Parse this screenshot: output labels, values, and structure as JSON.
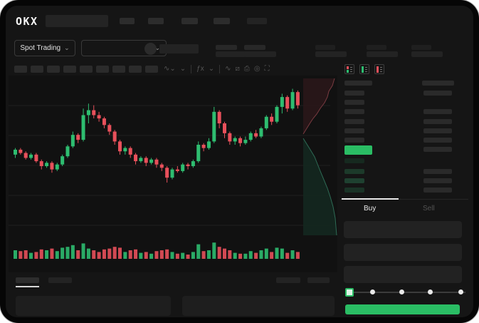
{
  "window": {
    "brand": "OKX"
  },
  "theme": {
    "green": "#2ebd70",
    "red": "#e8505b",
    "bg": "#151515",
    "skeleton": "#2c2c2c",
    "highlight_green": "#2abd64"
  },
  "subheader": {
    "market_selector_label": "Spot Trading",
    "chevron": "⌄"
  },
  "toolbar": {
    "icons": [
      {
        "name": "chart-style-icon",
        "glyph": "∿⌄"
      },
      {
        "name": "interval-dropdown-icon",
        "glyph": "⌄"
      },
      {
        "name": "divider"
      },
      {
        "name": "indicators-icon",
        "glyph": "ƒx"
      },
      {
        "name": "indicators-dropdown-icon",
        "glyph": "⌄"
      },
      {
        "name": "divider"
      },
      {
        "name": "line-tool-icon",
        "glyph": "∿"
      },
      {
        "name": "draw-tool-icon",
        "glyph": "⧄"
      },
      {
        "name": "screenshot-icon",
        "glyph": "⎙"
      },
      {
        "name": "target-icon",
        "glyph": "◎"
      },
      {
        "name": "fullscreen-icon",
        "glyph": "⛶"
      }
    ]
  },
  "orderbook": {
    "view_icons": [
      "book-both-icon",
      "book-bids-icon",
      "book-asks-icon"
    ],
    "asks": [
      {
        "right": true
      },
      {
        "right": false
      },
      {
        "right": true
      },
      {
        "right": true
      },
      {
        "right": true
      },
      {
        "right": true
      }
    ],
    "last_price_row": {
      "highlight": "#2abd64",
      "right": true
    },
    "bids": [
      {
        "shade": "#16291f",
        "right": false
      },
      {
        "shade": "#1c3a2a",
        "right": true
      },
      {
        "shade": "#1e4130",
        "right": true
      },
      {
        "shade": "#1a3326",
        "right": true
      }
    ],
    "tabs": {
      "buy": "Buy",
      "sell": "Sell"
    }
  },
  "order_form": {
    "slider_stops": 5,
    "slider_active_stop": 1
  },
  "chart_data": {
    "type": "candlestick",
    "title": "",
    "xlabel": "",
    "ylabel": "",
    "price_range": [
      30,
      95
    ],
    "grid": true,
    "volume_pane": true,
    "candles": [
      {
        "o": 50,
        "h": 54,
        "l": 48,
        "c": 53,
        "v": 0.5
      },
      {
        "o": 53,
        "h": 54,
        "l": 50,
        "c": 51,
        "v": 0.45
      },
      {
        "o": 51,
        "h": 52,
        "l": 47,
        "c": 48,
        "v": 0.5
      },
      {
        "o": 48,
        "h": 51,
        "l": 47,
        "c": 50,
        "v": 0.35
      },
      {
        "o": 50,
        "h": 51,
        "l": 45,
        "c": 46,
        "v": 0.4
      },
      {
        "o": 46,
        "h": 47,
        "l": 41,
        "c": 43,
        "v": 0.55
      },
      {
        "o": 43,
        "h": 46,
        "l": 42,
        "c": 45,
        "v": 0.5
      },
      {
        "o": 45,
        "h": 46,
        "l": 39,
        "c": 41,
        "v": 0.6
      },
      {
        "o": 41,
        "h": 45,
        "l": 40,
        "c": 44,
        "v": 0.45
      },
      {
        "o": 44,
        "h": 50,
        "l": 43,
        "c": 49,
        "v": 0.65
      },
      {
        "o": 49,
        "h": 56,
        "l": 48,
        "c": 55,
        "v": 0.7
      },
      {
        "o": 55,
        "h": 64,
        "l": 54,
        "c": 62,
        "v": 0.8
      },
      {
        "o": 62,
        "h": 63,
        "l": 57,
        "c": 59,
        "v": 0.5
      },
      {
        "o": 59,
        "h": 78,
        "l": 58,
        "c": 74,
        "v": 0.9
      },
      {
        "o": 74,
        "h": 81,
        "l": 69,
        "c": 77,
        "v": 0.6
      },
      {
        "o": 77,
        "h": 80,
        "l": 72,
        "c": 74,
        "v": 0.5
      },
      {
        "o": 74,
        "h": 76,
        "l": 70,
        "c": 72,
        "v": 0.4
      },
      {
        "o": 72,
        "h": 73,
        "l": 66,
        "c": 68,
        "v": 0.55
      },
      {
        "o": 68,
        "h": 69,
        "l": 62,
        "c": 64,
        "v": 0.6
      },
      {
        "o": 64,
        "h": 65,
        "l": 56,
        "c": 58,
        "v": 0.7
      },
      {
        "o": 58,
        "h": 59,
        "l": 50,
        "c": 52,
        "v": 0.65
      },
      {
        "o": 52,
        "h": 55,
        "l": 50,
        "c": 54,
        "v": 0.4
      },
      {
        "o": 54,
        "h": 55,
        "l": 48,
        "c": 50,
        "v": 0.5
      },
      {
        "o": 50,
        "h": 51,
        "l": 44,
        "c": 46,
        "v": 0.55
      },
      {
        "o": 46,
        "h": 49,
        "l": 45,
        "c": 48,
        "v": 0.35
      },
      {
        "o": 48,
        "h": 49,
        "l": 43,
        "c": 45,
        "v": 0.4
      },
      {
        "o": 45,
        "h": 48,
        "l": 44,
        "c": 47,
        "v": 0.3
      },
      {
        "o": 47,
        "h": 48,
        "l": 42,
        "c": 44,
        "v": 0.45
      },
      {
        "o": 44,
        "h": 45,
        "l": 40,
        "c": 42,
        "v": 0.5
      },
      {
        "o": 42,
        "h": 43,
        "l": 33,
        "c": 36,
        "v": 0.55
      },
      {
        "o": 36,
        "h": 42,
        "l": 35,
        "c": 41,
        "v": 0.4
      },
      {
        "o": 41,
        "h": 43,
        "l": 39,
        "c": 40,
        "v": 0.3
      },
      {
        "o": 40,
        "h": 45,
        "l": 39,
        "c": 44,
        "v": 0.35
      },
      {
        "o": 44,
        "h": 45,
        "l": 41,
        "c": 43,
        "v": 0.25
      },
      {
        "o": 43,
        "h": 47,
        "l": 42,
        "c": 46,
        "v": 0.4
      },
      {
        "o": 46,
        "h": 58,
        "l": 45,
        "c": 56,
        "v": 0.85
      },
      {
        "o": 56,
        "h": 57,
        "l": 52,
        "c": 54,
        "v": 0.45
      },
      {
        "o": 54,
        "h": 60,
        "l": 53,
        "c": 58,
        "v": 0.5
      },
      {
        "o": 58,
        "h": 79,
        "l": 57,
        "c": 76,
        "v": 0.95
      },
      {
        "o": 76,
        "h": 77,
        "l": 66,
        "c": 69,
        "v": 0.7
      },
      {
        "o": 69,
        "h": 70,
        "l": 60,
        "c": 63,
        "v": 0.6
      },
      {
        "o": 63,
        "h": 64,
        "l": 56,
        "c": 58,
        "v": 0.5
      },
      {
        "o": 58,
        "h": 61,
        "l": 56,
        "c": 60,
        "v": 0.35
      },
      {
        "o": 60,
        "h": 61,
        "l": 55,
        "c": 57,
        "v": 0.3
      },
      {
        "o": 57,
        "h": 61,
        "l": 56,
        "c": 59,
        "v": 0.3
      },
      {
        "o": 59,
        "h": 64,
        "l": 58,
        "c": 63,
        "v": 0.45
      },
      {
        "o": 63,
        "h": 65,
        "l": 60,
        "c": 61,
        "v": 0.35
      },
      {
        "o": 61,
        "h": 67,
        "l": 60,
        "c": 66,
        "v": 0.5
      },
      {
        "o": 66,
        "h": 74,
        "l": 65,
        "c": 73,
        "v": 0.6
      },
      {
        "o": 73,
        "h": 75,
        "l": 68,
        "c": 70,
        "v": 0.4
      },
      {
        "o": 70,
        "h": 80,
        "l": 69,
        "c": 79,
        "v": 0.65
      },
      {
        "o": 79,
        "h": 87,
        "l": 75,
        "c": 85,
        "v": 0.6
      },
      {
        "o": 85,
        "h": 86,
        "l": 76,
        "c": 78,
        "v": 0.35
      },
      {
        "o": 78,
        "h": 90,
        "l": 77,
        "c": 88,
        "v": 0.5
      },
      {
        "o": 88,
        "h": 89,
        "l": 78,
        "c": 80,
        "v": 0.4
      }
    ]
  }
}
